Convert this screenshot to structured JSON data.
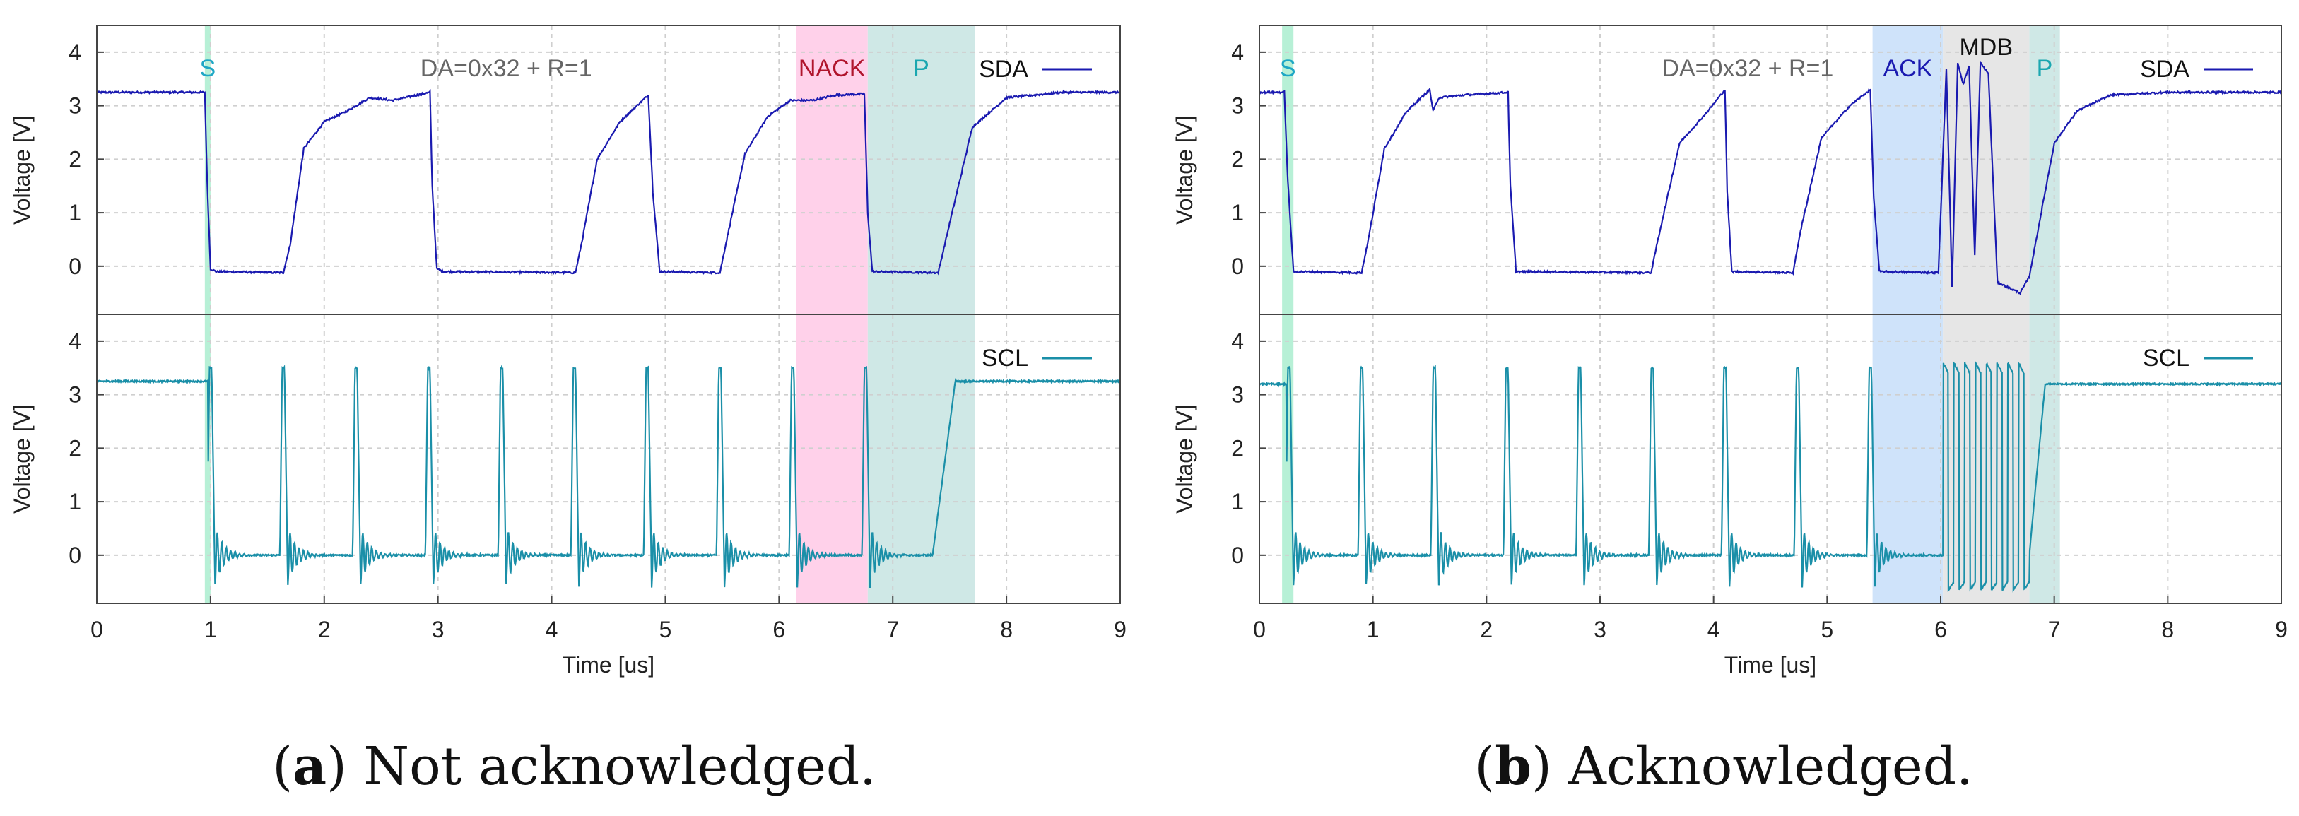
{
  "chart_data": [
    {
      "type": "line",
      "panel": "a",
      "xlabel": "Time [us]",
      "ylabel": "Voltage [V]",
      "xlim": [
        0,
        9
      ],
      "ylim": [
        -0.9,
        4.5
      ],
      "xticks": [
        "0",
        "1",
        "2",
        "3",
        "4",
        "5",
        "6",
        "7",
        "8",
        "9"
      ],
      "yticks": [
        "0",
        "1",
        "2",
        "3",
        "4"
      ],
      "grid": true,
      "title_annotation": "DA=0x32 + R=1",
      "regions": [
        {
          "label": "S",
          "start": 0.95,
          "end": 1.0,
          "color": "#b7f0d6",
          "label_color": "#1ea7c5"
        },
        {
          "label": "NACK",
          "start": 6.15,
          "end": 6.78,
          "color": "#ffd1ea",
          "label_color": "#b0142c"
        },
        {
          "label": "P",
          "start": 6.78,
          "end": 7.72,
          "color": "#cfe8e6",
          "label_color": "#1aa7b0"
        }
      ],
      "series": [
        {
          "name": "SDA",
          "color": "#1a1ab0",
          "legend_position": "top-right",
          "x": [
            0.0,
            0.95,
            0.97,
            1.0,
            1.05,
            1.64,
            1.7,
            1.82,
            2.0,
            2.2,
            2.4,
            2.6,
            2.93,
            2.95,
            2.99,
            3.05,
            4.21,
            4.27,
            4.4,
            4.6,
            4.8,
            4.85,
            4.89,
            4.95,
            5.48,
            5.54,
            5.7,
            5.9,
            6.1,
            6.3,
            6.5,
            6.75,
            6.78,
            6.82,
            7.4,
            7.5,
            7.7,
            8.0,
            8.5,
            9.0
          ],
          "y": [
            3.25,
            3.25,
            1.6,
            -0.05,
            -0.1,
            -0.12,
            0.4,
            2.2,
            2.7,
            2.9,
            3.15,
            3.1,
            3.25,
            1.5,
            -0.05,
            -0.1,
            -0.12,
            0.5,
            2.0,
            2.7,
            3.1,
            3.2,
            1.4,
            -0.1,
            -0.12,
            0.5,
            2.1,
            2.8,
            3.1,
            3.1,
            3.2,
            3.22,
            1.0,
            -0.1,
            -0.12,
            0.8,
            2.6,
            3.15,
            3.25,
            3.25
          ]
        },
        {
          "name": "SCL",
          "color": "#1a8fa8",
          "legend_position": "top-right",
          "pulses": [
            0.99,
            1.63,
            2.27,
            2.91,
            3.55,
            4.19,
            4.83,
            5.47,
            6.11,
            6.75
          ],
          "pulse_peak": 3.5,
          "idle_level": 3.25,
          "low_level": 0.0,
          "rise_start": 7.35,
          "rise_end": 7.55
        }
      ]
    },
    {
      "type": "line",
      "panel": "b",
      "xlabel": "Time [us]",
      "ylabel": "Voltage [V]",
      "xlim": [
        0,
        9
      ],
      "ylim": [
        -0.9,
        4.5
      ],
      "xticks": [
        "0",
        "1",
        "2",
        "3",
        "4",
        "5",
        "6",
        "7",
        "8",
        "9"
      ],
      "yticks": [
        "0",
        "1",
        "2",
        "3",
        "4"
      ],
      "grid": true,
      "title_annotation": "DA=0x32 + R=1",
      "regions": [
        {
          "label": "S",
          "start": 0.2,
          "end": 0.3,
          "color": "#b7f0d6",
          "label_color": "#1ea7c5"
        },
        {
          "label": "ACK",
          "start": 5.4,
          "end": 6.02,
          "color": "#cfe3fa",
          "label_color": "#1a1ab0"
        },
        {
          "label": "MDB",
          "start": 6.02,
          "end": 6.78,
          "color": "#e6e6e6",
          "label_color": "#111111"
        },
        {
          "label": "P",
          "start": 6.78,
          "end": 7.05,
          "color": "#cfe8e6",
          "label_color": "#1aa7b0"
        }
      ],
      "series": [
        {
          "name": "SDA",
          "color": "#1a1ab0",
          "legend_position": "top-right",
          "x": [
            0.0,
            0.22,
            0.25,
            0.3,
            0.9,
            0.96,
            1.1,
            1.3,
            1.5,
            1.53,
            1.58,
            1.8,
            2.19,
            2.21,
            2.26,
            3.45,
            3.51,
            3.7,
            3.95,
            4.1,
            4.12,
            4.16,
            4.7,
            4.76,
            4.95,
            5.2,
            5.38,
            5.41,
            5.46,
            5.98,
            6.05,
            6.1,
            6.15,
            6.2,
            6.25,
            6.3,
            6.35,
            6.42,
            6.5,
            6.6,
            6.7,
            6.78,
            6.85,
            7.0,
            7.2,
            7.5,
            8.0,
            9.0
          ],
          "y": [
            3.25,
            3.25,
            1.6,
            -0.1,
            -0.12,
            0.5,
            2.2,
            2.9,
            3.3,
            2.9,
            3.15,
            3.2,
            3.25,
            1.5,
            -0.1,
            -0.12,
            0.5,
            2.3,
            2.9,
            3.3,
            1.4,
            -0.1,
            -0.12,
            0.6,
            2.4,
            3.0,
            3.3,
            1.3,
            -0.1,
            -0.12,
            3.7,
            -0.4,
            3.8,
            3.4,
            3.75,
            0.2,
            3.8,
            3.6,
            -0.3,
            -0.4,
            -0.5,
            -0.2,
            0.6,
            2.3,
            2.9,
            3.2,
            3.25,
            3.25
          ]
        },
        {
          "name": "SCL",
          "color": "#1a8fa8",
          "legend_position": "top-right",
          "pulses": [
            0.25,
            0.89,
            1.53,
            2.17,
            2.81,
            3.45,
            4.09,
            4.73,
            5.37
          ],
          "burst_start": 6.02,
          "burst_end": 6.78,
          "burst_cycles": 8,
          "pulse_peak": 3.5,
          "idle_level": 3.2,
          "low_level": 0.0,
          "rise_start": 6.78,
          "rise_end": 6.92
        }
      ]
    }
  ],
  "captions": {
    "a": {
      "letter": "a",
      "text": ") Not acknowledged."
    },
    "b": {
      "letter": "b",
      "text": ") Acknowledged."
    }
  },
  "legend": {
    "sda": "SDA",
    "scl": "SCL"
  },
  "labels": {
    "open_paren": "("
  }
}
